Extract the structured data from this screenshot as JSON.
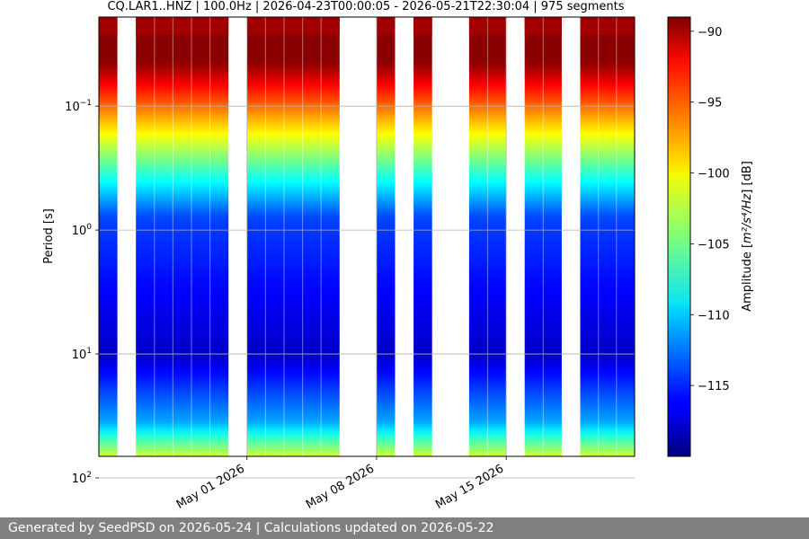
{
  "chart_data": {
    "type": "heatmap",
    "title": "CQ.LAR1..HNZ | 100.0Hz | 2026-04-23T00:00:05 - 2026-05-21T22:30:04 | 975 segments",
    "ylabel": "Period [s]",
    "xlabel": "",
    "y_scale": "log",
    "y_range_seconds": [
      0.0191,
      67
    ],
    "y_ticks": [
      {
        "value": 0.1,
        "base": "10",
        "exp": "−1"
      },
      {
        "value": 1,
        "base": "10",
        "exp": "0"
      },
      {
        "value": 10,
        "base": "10",
        "exp": "1"
      },
      {
        "value": 100,
        "base": "10",
        "exp": "2"
      }
    ],
    "x_range": [
      "2026-04-23T00:00:05",
      "2026-05-21T22:30:04"
    ],
    "x_ticks": [
      {
        "date": "2026-05-01",
        "label": "May 01 2026"
      },
      {
        "date": "2026-05-08",
        "label": "May 08 2026"
      },
      {
        "date": "2026-05-15",
        "label": "May 15 2026"
      }
    ],
    "grid": true,
    "data_segments": [
      {
        "start": "2026-04-23",
        "end": "2026-04-24"
      },
      {
        "start": "2026-04-25",
        "end": "2026-04-30"
      },
      {
        "start": "2026-05-01",
        "end": "2026-05-06"
      },
      {
        "start": "2026-05-08",
        "end": "2026-05-09"
      },
      {
        "start": "2026-05-10",
        "end": "2026-05-11"
      },
      {
        "start": "2026-05-13",
        "end": "2026-05-15"
      },
      {
        "start": "2026-05-16",
        "end": "2026-05-18"
      },
      {
        "start": "2026-05-19",
        "end": "2026-05-21T22:30:04"
      }
    ],
    "colorbar": {
      "label_prefix": "Amplitude [",
      "label_unit": "m²/s⁴/Hz",
      "label_suffix": "] [dB]",
      "range_db": [
        -120,
        -89
      ],
      "ticks": [
        "−90",
        "−95",
        "−100",
        "−105",
        "−110",
        "−115"
      ],
      "tick_values": [
        -90,
        -95,
        -100,
        -105,
        -110,
        -115
      ],
      "colormap": "jet"
    }
  },
  "footer": {
    "text": "Generated by SeedPSD on 2026-05-24 | Calculations updated on 2026-05-22"
  }
}
